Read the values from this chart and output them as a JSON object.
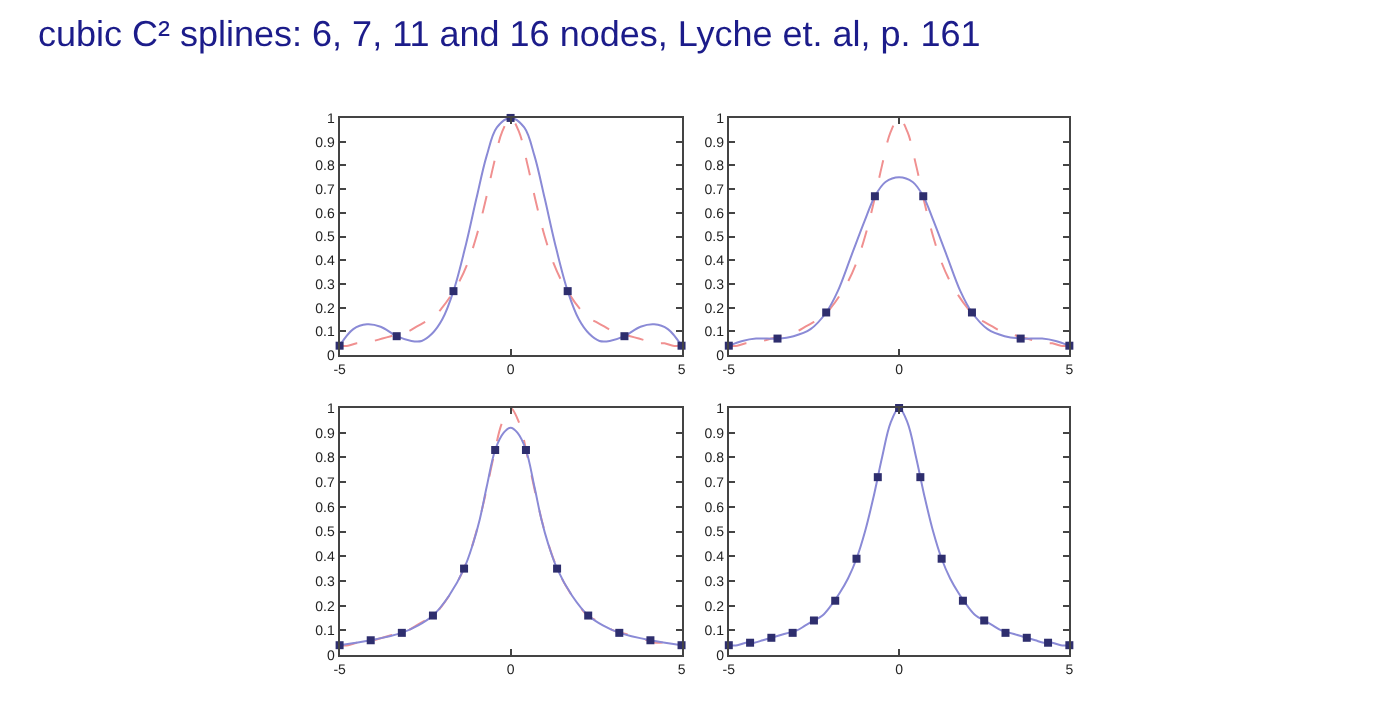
{
  "chart_data": [
    {
      "type": "line",
      "title": "cubic C² splines: 6, 7, 11 and 16 nodes, Lyche et. al, p. 161",
      "xlim": [
        -5,
        5
      ],
      "xticks": [
        -5,
        0,
        5
      ],
      "ylim": [
        0,
        1
      ],
      "yticks": [
        0,
        0.1,
        0.2,
        0.3,
        0.4,
        0.5,
        0.6,
        0.7,
        0.8,
        0.9,
        1
      ],
      "series": [
        {
          "line_style": "dashed",
          "color": "#f09090",
          "x": [
            -5,
            -4.75,
            -4.5,
            -4.25,
            -4,
            -3.75,
            -3.5,
            -3.25,
            -3,
            -2.75,
            -2.5,
            -2.25,
            -2,
            -1.75,
            -1.5,
            -1.25,
            -1,
            -0.75,
            -0.5,
            -0.25,
            0,
            0.25,
            0.5,
            0.75,
            1,
            1.25,
            1.5,
            1.75,
            2,
            2.25,
            2.5,
            2.75,
            3,
            3.25,
            3.5,
            3.75,
            4,
            4.25,
            4.5,
            4.75,
            5
          ],
          "values": [
            0.04,
            0.04,
            0.05,
            0.05,
            0.06,
            0.07,
            0.08,
            0.09,
            0.1,
            0.12,
            0.14,
            0.16,
            0.2,
            0.25,
            0.31,
            0.39,
            0.5,
            0.64,
            0.8,
            0.94,
            1,
            0.94,
            0.8,
            0.64,
            0.5,
            0.39,
            0.31,
            0.25,
            0.2,
            0.16,
            0.14,
            0.12,
            0.1,
            0.09,
            0.08,
            0.07,
            0.06,
            0.05,
            0.05,
            0.04,
            0.04
          ]
        },
        {
          "line_style": "solid",
          "color": "#8a8ad6",
          "x": [
            -5,
            -4.6,
            -4.2,
            -3.8,
            -3.33,
            -2.9,
            -2.6,
            -2.3,
            -2,
            -1.67,
            -1.3,
            -1,
            -0.7,
            -0.4,
            0,
            0.4,
            0.7,
            1,
            1.3,
            1.67,
            2,
            2.3,
            2.6,
            2.9,
            3.33,
            3.8,
            4.2,
            4.6,
            5
          ],
          "values": [
            0.04,
            0.11,
            0.13,
            0.12,
            0.08,
            0.06,
            0.06,
            0.09,
            0.15,
            0.27,
            0.47,
            0.66,
            0.84,
            0.96,
            1,
            0.96,
            0.84,
            0.66,
            0.47,
            0.27,
            0.15,
            0.09,
            0.06,
            0.06,
            0.08,
            0.12,
            0.13,
            0.11,
            0.04
          ]
        },
        {
          "type": "scatter",
          "marker": "square",
          "color": "#2e2e6e",
          "x": [
            -5,
            -3.33,
            -1.67,
            0,
            1.67,
            3.33,
            5
          ],
          "values": [
            0.04,
            0.08,
            0.27,
            1,
            0.27,
            0.08,
            0.04
          ]
        }
      ]
    },
    {
      "type": "line",
      "xlim": [
        -5,
        5
      ],
      "xticks": [
        -5,
        0,
        5
      ],
      "ylim": [
        0,
        1
      ],
      "yticks": [
        0,
        0.1,
        0.2,
        0.3,
        0.4,
        0.5,
        0.6,
        0.7,
        0.8,
        0.9,
        1
      ],
      "series": [
        {
          "line_style": "dashed",
          "color": "#f09090",
          "x": [
            -5,
            -4.75,
            -4.5,
            -4.25,
            -4,
            -3.75,
            -3.5,
            -3.25,
            -3,
            -2.75,
            -2.5,
            -2.25,
            -2,
            -1.75,
            -1.5,
            -1.25,
            -1,
            -0.75,
            -0.5,
            -0.25,
            0,
            0.25,
            0.5,
            0.75,
            1,
            1.25,
            1.5,
            1.75,
            2,
            2.25,
            2.5,
            2.75,
            3,
            3.25,
            3.5,
            3.75,
            4,
            4.25,
            4.5,
            4.75,
            5
          ],
          "values": [
            0.04,
            0.04,
            0.05,
            0.05,
            0.06,
            0.07,
            0.08,
            0.09,
            0.1,
            0.12,
            0.14,
            0.16,
            0.2,
            0.25,
            0.31,
            0.39,
            0.5,
            0.64,
            0.8,
            0.94,
            1,
            0.94,
            0.8,
            0.64,
            0.5,
            0.39,
            0.31,
            0.25,
            0.2,
            0.16,
            0.14,
            0.12,
            0.1,
            0.09,
            0.08,
            0.07,
            0.06,
            0.05,
            0.05,
            0.04,
            0.04
          ]
        },
        {
          "line_style": "solid",
          "color": "#8a8ad6",
          "x": [
            -5,
            -4.6,
            -4.2,
            -3.57,
            -3.1,
            -2.6,
            -2.14,
            -1.8,
            -1.4,
            -1,
            -0.71,
            -0.4,
            0,
            0.4,
            0.71,
            1,
            1.4,
            1.8,
            2.14,
            2.6,
            3.1,
            3.57,
            4.2,
            4.6,
            5
          ],
          "values": [
            0.04,
            0.06,
            0.07,
            0.07,
            0.08,
            0.11,
            0.18,
            0.27,
            0.42,
            0.57,
            0.67,
            0.73,
            0.75,
            0.73,
            0.67,
            0.57,
            0.42,
            0.27,
            0.18,
            0.11,
            0.08,
            0.07,
            0.07,
            0.06,
            0.04
          ]
        },
        {
          "type": "scatter",
          "marker": "square",
          "color": "#2e2e6e",
          "x": [
            -5,
            -3.57,
            -2.14,
            -0.71,
            0.71,
            2.14,
            3.57,
            5
          ],
          "values": [
            0.04,
            0.07,
            0.18,
            0.67,
            0.67,
            0.18,
            0.07,
            0.04
          ]
        }
      ]
    },
    {
      "type": "line",
      "xlim": [
        -5,
        5
      ],
      "xticks": [
        -5,
        0,
        5
      ],
      "ylim": [
        0,
        1
      ],
      "yticks": [
        0,
        0.1,
        0.2,
        0.3,
        0.4,
        0.5,
        0.6,
        0.7,
        0.8,
        0.9,
        1
      ],
      "series": [
        {
          "line_style": "dashed",
          "color": "#f09090",
          "x": [
            -5,
            -4.75,
            -4.5,
            -4.25,
            -4,
            -3.75,
            -3.5,
            -3.25,
            -3,
            -2.75,
            -2.5,
            -2.25,
            -2,
            -1.75,
            -1.5,
            -1.25,
            -1,
            -0.75,
            -0.5,
            -0.25,
            0,
            0.25,
            0.5,
            0.75,
            1,
            1.25,
            1.5,
            1.75,
            2,
            2.25,
            2.5,
            2.75,
            3,
            3.25,
            3.5,
            3.75,
            4,
            4.25,
            4.5,
            4.75,
            5
          ],
          "values": [
            0.04,
            0.04,
            0.05,
            0.05,
            0.06,
            0.07,
            0.08,
            0.09,
            0.1,
            0.12,
            0.14,
            0.16,
            0.2,
            0.25,
            0.31,
            0.39,
            0.5,
            0.64,
            0.8,
            0.94,
            1,
            0.94,
            0.8,
            0.64,
            0.5,
            0.39,
            0.31,
            0.25,
            0.2,
            0.16,
            0.14,
            0.12,
            0.1,
            0.09,
            0.08,
            0.07,
            0.06,
            0.05,
            0.05,
            0.04,
            0.04
          ]
        },
        {
          "line_style": "solid",
          "color": "#8a8ad6",
          "x": [
            -5,
            -4.09,
            -3.18,
            -2.7,
            -2.27,
            -1.8,
            -1.36,
            -1.1,
            -0.9,
            -0.7,
            -0.45,
            -0.2,
            0,
            0.2,
            0.45,
            0.7,
            0.9,
            1.1,
            1.36,
            1.8,
            2.27,
            2.7,
            3.18,
            4.09,
            5
          ],
          "values": [
            0.04,
            0.06,
            0.09,
            0.12,
            0.16,
            0.24,
            0.35,
            0.45,
            0.55,
            0.68,
            0.83,
            0.9,
            0.92,
            0.9,
            0.83,
            0.68,
            0.55,
            0.45,
            0.35,
            0.24,
            0.16,
            0.12,
            0.09,
            0.06,
            0.04
          ]
        },
        {
          "type": "scatter",
          "marker": "square",
          "color": "#2e2e6e",
          "x": [
            -5,
            -4.09,
            -3.18,
            -2.27,
            -1.36,
            -0.45,
            0.45,
            1.36,
            2.27,
            3.18,
            4.09,
            5
          ],
          "values": [
            0.04,
            0.06,
            0.09,
            0.16,
            0.35,
            0.83,
            0.83,
            0.35,
            0.16,
            0.09,
            0.06,
            0.04
          ]
        }
      ]
    },
    {
      "type": "line",
      "xlim": [
        -5,
        5
      ],
      "xticks": [
        -5,
        0,
        5
      ],
      "ylim": [
        0,
        1
      ],
      "yticks": [
        0,
        0.1,
        0.2,
        0.3,
        0.4,
        0.5,
        0.6,
        0.7,
        0.8,
        0.9,
        1
      ],
      "series": [
        {
          "line_style": "solid",
          "color": "#8a8ad6",
          "x": [
            -5,
            -4.75,
            -4.5,
            -4.25,
            -4,
            -3.75,
            -3.5,
            -3.25,
            -3,
            -2.75,
            -2.5,
            -2.25,
            -2,
            -1.75,
            -1.5,
            -1.25,
            -1,
            -0.75,
            -0.5,
            -0.25,
            0,
            0.25,
            0.5,
            0.75,
            1,
            1.25,
            1.5,
            1.75,
            2,
            2.25,
            2.5,
            2.75,
            3,
            3.25,
            3.5,
            3.75,
            4,
            4.25,
            4.5,
            4.75,
            5
          ],
          "values": [
            0.04,
            0.04,
            0.05,
            0.05,
            0.06,
            0.07,
            0.08,
            0.09,
            0.1,
            0.12,
            0.14,
            0.16,
            0.2,
            0.25,
            0.31,
            0.39,
            0.5,
            0.64,
            0.8,
            0.94,
            1,
            0.94,
            0.8,
            0.64,
            0.5,
            0.39,
            0.31,
            0.25,
            0.2,
            0.16,
            0.14,
            0.12,
            0.1,
            0.09,
            0.08,
            0.07,
            0.06,
            0.05,
            0.05,
            0.04,
            0.04
          ]
        },
        {
          "type": "scatter",
          "marker": "square",
          "color": "#2e2e6e",
          "x": [
            -5,
            -4.375,
            -3.75,
            -3.125,
            -2.5,
            -1.875,
            -1.25,
            -0.625,
            0,
            0.625,
            1.25,
            1.875,
            2.5,
            3.125,
            3.75,
            4.375,
            5
          ],
          "values": [
            0.04,
            0.05,
            0.07,
            0.09,
            0.14,
            0.22,
            0.39,
            0.72,
            1,
            0.72,
            0.39,
            0.22,
            0.14,
            0.09,
            0.07,
            0.05,
            0.04
          ]
        }
      ]
    }
  ]
}
